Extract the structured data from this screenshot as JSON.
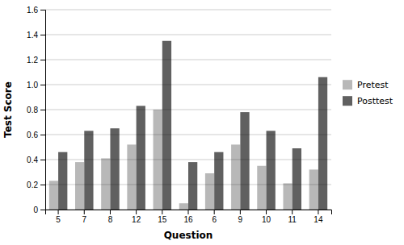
{
  "chart_data": {
    "type": "bar",
    "categories": [
      "5",
      "7",
      "8",
      "12",
      "15",
      "16",
      "6",
      "9",
      "10",
      "11",
      "14"
    ],
    "series": [
      {
        "name": "Pretest",
        "color": "#b8b8b8",
        "values": [
          0.23,
          0.38,
          0.41,
          0.52,
          0.8,
          0.05,
          0.29,
          0.52,
          0.35,
          0.21,
          0.32
        ]
      },
      {
        "name": "Posttest",
        "color": "#606060",
        "values": [
          0.46,
          0.63,
          0.65,
          0.83,
          1.35,
          0.38,
          0.46,
          0.78,
          0.63,
          0.49,
          1.06
        ]
      }
    ],
    "x_label": "Question",
    "y_label": "Test Score",
    "ylim": [
      0,
      1.6
    ],
    "yticks": [
      0,
      0.2,
      0.4,
      0.6,
      0.8,
      {
        "value": 1.0,
        "label": "1.0"
      },
      1.2,
      1.4,
      1.6
    ],
    "grid": true,
    "legend": "right"
  }
}
